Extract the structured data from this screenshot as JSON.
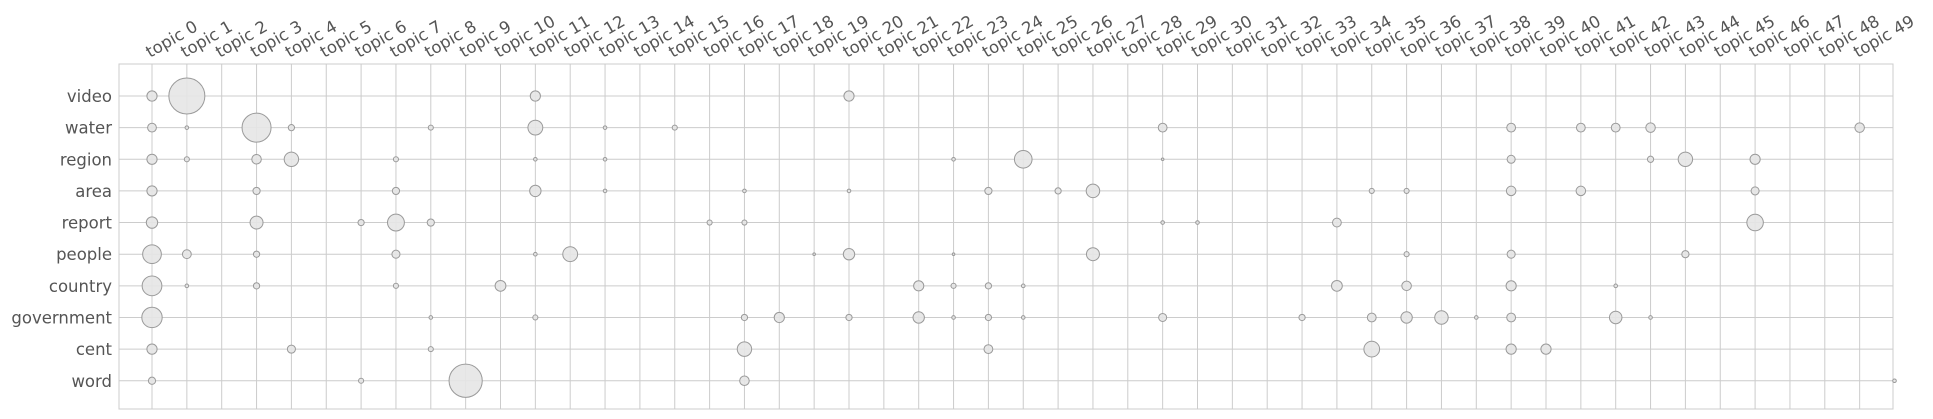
{
  "chart_data": {
    "type": "scatter",
    "title": "",
    "xlabel": "",
    "ylabel": "",
    "categories_x": [
      "topic 0",
      "topic 1",
      "topic 2",
      "topic 3",
      "topic 4",
      "topic 5",
      "topic 6",
      "topic 7",
      "topic 8",
      "topic 9",
      "topic 10",
      "topic 11",
      "topic 12",
      "topic 13",
      "topic 14",
      "topic 15",
      "topic 16",
      "topic 17",
      "topic 18",
      "topic 19",
      "topic 20",
      "topic 21",
      "topic 22",
      "topic 23",
      "topic 24",
      "topic 25",
      "topic 26",
      "topic 27",
      "topic 28",
      "topic 29",
      "topic 30",
      "topic 31",
      "topic 32",
      "topic 33",
      "topic 34",
      "topic 35",
      "topic 36",
      "topic 37",
      "topic 38",
      "topic 39",
      "topic 40",
      "topic 41",
      "topic 42",
      "topic 43",
      "topic 44",
      "topic 45",
      "topic 46",
      "topic 47",
      "topic 48",
      "topic 49"
    ],
    "categories_y": [
      "video",
      "water",
      "region",
      "area",
      "report",
      "people",
      "country",
      "government",
      "cent",
      "word"
    ],
    "x_tick_position": "top",
    "grid": true,
    "bubble_color": "#e6e6e6",
    "bubble_edge_color": "#9a9a9a",
    "grid_color": "#cccccc",
    "points": [
      {
        "word": "video",
        "topic": 0,
        "value": 0.08
      },
      {
        "word": "video",
        "topic": 1,
        "value": 1.0
      },
      {
        "word": "video",
        "topic": 11,
        "value": 0.08
      },
      {
        "word": "video",
        "topic": 20,
        "value": 0.08
      },
      {
        "word": "water",
        "topic": 0,
        "value": 0.06
      },
      {
        "word": "water",
        "topic": 1,
        "value": 0.01
      },
      {
        "word": "water",
        "topic": 3,
        "value": 0.65
      },
      {
        "word": "water",
        "topic": 4,
        "value": 0.03
      },
      {
        "word": "water",
        "topic": 8,
        "value": 0.02
      },
      {
        "word": "water",
        "topic": 11,
        "value": 0.17
      },
      {
        "word": "water",
        "topic": 13,
        "value": 0.01
      },
      {
        "word": "water",
        "topic": 15,
        "value": 0.02
      },
      {
        "word": "water",
        "topic": 29,
        "value": 0.06
      },
      {
        "word": "water",
        "topic": 39,
        "value": 0.06
      },
      {
        "word": "water",
        "topic": 41,
        "value": 0.06
      },
      {
        "word": "water",
        "topic": 42,
        "value": 0.06
      },
      {
        "word": "water",
        "topic": 43,
        "value": 0.07
      },
      {
        "word": "water",
        "topic": 49,
        "value": 0.07
      },
      {
        "word": "region",
        "topic": 0,
        "value": 0.08
      },
      {
        "word": "region",
        "topic": 1,
        "value": 0.02
      },
      {
        "word": "region",
        "topic": 3,
        "value": 0.07
      },
      {
        "word": "region",
        "topic": 4,
        "value": 0.16
      },
      {
        "word": "region",
        "topic": 7,
        "value": 0.02
      },
      {
        "word": "region",
        "topic": 11,
        "value": 0.01
      },
      {
        "word": "region",
        "topic": 13,
        "value": 0.01
      },
      {
        "word": "region",
        "topic": 23,
        "value": 0.01
      },
      {
        "word": "region",
        "topic": 25,
        "value": 0.24
      },
      {
        "word": "region",
        "topic": 29,
        "value": 0.005
      },
      {
        "word": "region",
        "topic": 39,
        "value": 0.05
      },
      {
        "word": "region",
        "topic": 43,
        "value": 0.03
      },
      {
        "word": "region",
        "topic": 44,
        "value": 0.16
      },
      {
        "word": "region",
        "topic": 46,
        "value": 0.08
      },
      {
        "word": "area",
        "topic": 0,
        "value": 0.08
      },
      {
        "word": "area",
        "topic": 3,
        "value": 0.04
      },
      {
        "word": "area",
        "topic": 7,
        "value": 0.04
      },
      {
        "word": "area",
        "topic": 11,
        "value": 0.1
      },
      {
        "word": "area",
        "topic": 13,
        "value": 0.01
      },
      {
        "word": "area",
        "topic": 17,
        "value": 0.01
      },
      {
        "word": "area",
        "topic": 20,
        "value": 0.01
      },
      {
        "word": "area",
        "topic": 24,
        "value": 0.04
      },
      {
        "word": "area",
        "topic": 26,
        "value": 0.03
      },
      {
        "word": "area",
        "topic": 27,
        "value": 0.14
      },
      {
        "word": "area",
        "topic": 35,
        "value": 0.02
      },
      {
        "word": "area",
        "topic": 36,
        "value": 0.02
      },
      {
        "word": "area",
        "topic": 39,
        "value": 0.07
      },
      {
        "word": "area",
        "topic": 41,
        "value": 0.07
      },
      {
        "word": "area",
        "topic": 46,
        "value": 0.05
      },
      {
        "word": "report",
        "topic": 0,
        "value": 0.1
      },
      {
        "word": "report",
        "topic": 3,
        "value": 0.13
      },
      {
        "word": "report",
        "topic": 6,
        "value": 0.03
      },
      {
        "word": "report",
        "topic": 7,
        "value": 0.22
      },
      {
        "word": "report",
        "topic": 8,
        "value": 0.04
      },
      {
        "word": "report",
        "topic": 16,
        "value": 0.02
      },
      {
        "word": "report",
        "topic": 17,
        "value": 0.02
      },
      {
        "word": "report",
        "topic": 29,
        "value": 0.01
      },
      {
        "word": "report",
        "topic": 30,
        "value": 0.01
      },
      {
        "word": "report",
        "topic": 34,
        "value": 0.06
      },
      {
        "word": "report",
        "topic": 46,
        "value": 0.21
      },
      {
        "word": "people",
        "topic": 0,
        "value": 0.27
      },
      {
        "word": "people",
        "topic": 1,
        "value": 0.06
      },
      {
        "word": "people",
        "topic": 3,
        "value": 0.03
      },
      {
        "word": "people",
        "topic": 7,
        "value": 0.05
      },
      {
        "word": "people",
        "topic": 11,
        "value": 0.01
      },
      {
        "word": "people",
        "topic": 12,
        "value": 0.17
      },
      {
        "word": "people",
        "topic": 19,
        "value": 0.005
      },
      {
        "word": "people",
        "topic": 20,
        "value": 0.1
      },
      {
        "word": "people",
        "topic": 23,
        "value": 0.005
      },
      {
        "word": "people",
        "topic": 27,
        "value": 0.13
      },
      {
        "word": "people",
        "topic": 36,
        "value": 0.02
      },
      {
        "word": "people",
        "topic": 39,
        "value": 0.05
      },
      {
        "word": "people",
        "topic": 44,
        "value": 0.04
      },
      {
        "word": "country",
        "topic": 0,
        "value": 0.3
      },
      {
        "word": "country",
        "topic": 1,
        "value": 0.01
      },
      {
        "word": "country",
        "topic": 3,
        "value": 0.03
      },
      {
        "word": "country",
        "topic": 7,
        "value": 0.02
      },
      {
        "word": "country",
        "topic": 10,
        "value": 0.09
      },
      {
        "word": "country",
        "topic": 22,
        "value": 0.08
      },
      {
        "word": "country",
        "topic": 23,
        "value": 0.02
      },
      {
        "word": "country",
        "topic": 24,
        "value": 0.03
      },
      {
        "word": "country",
        "topic": 25,
        "value": 0.01
      },
      {
        "word": "country",
        "topic": 34,
        "value": 0.09
      },
      {
        "word": "country",
        "topic": 36,
        "value": 0.07
      },
      {
        "word": "country",
        "topic": 39,
        "value": 0.08
      },
      {
        "word": "country",
        "topic": 42,
        "value": 0.01
      },
      {
        "word": "government",
        "topic": 0,
        "value": 0.32
      },
      {
        "word": "government",
        "topic": 8,
        "value": 0.01
      },
      {
        "word": "government",
        "topic": 11,
        "value": 0.02
      },
      {
        "word": "government",
        "topic": 17,
        "value": 0.03
      },
      {
        "word": "government",
        "topic": 18,
        "value": 0.08
      },
      {
        "word": "government",
        "topic": 20,
        "value": 0.03
      },
      {
        "word": "government",
        "topic": 22,
        "value": 0.1
      },
      {
        "word": "government",
        "topic": 23,
        "value": 0.01
      },
      {
        "word": "government",
        "topic": 24,
        "value": 0.03
      },
      {
        "word": "government",
        "topic": 25,
        "value": 0.01
      },
      {
        "word": "government",
        "topic": 29,
        "value": 0.05
      },
      {
        "word": "government",
        "topic": 33,
        "value": 0.03
      },
      {
        "word": "government",
        "topic": 35,
        "value": 0.06
      },
      {
        "word": "government",
        "topic": 36,
        "value": 0.1
      },
      {
        "word": "government",
        "topic": 37,
        "value": 0.14
      },
      {
        "word": "government",
        "topic": 38,
        "value": 0.01
      },
      {
        "word": "government",
        "topic": 39,
        "value": 0.06
      },
      {
        "word": "government",
        "topic": 42,
        "value": 0.12
      },
      {
        "word": "government",
        "topic": 43,
        "value": 0.01
      },
      {
        "word": "cent",
        "topic": 0,
        "value": 0.08
      },
      {
        "word": "cent",
        "topic": 4,
        "value": 0.05
      },
      {
        "word": "cent",
        "topic": 8,
        "value": 0.02
      },
      {
        "word": "cent",
        "topic": 17,
        "value": 0.16
      },
      {
        "word": "cent",
        "topic": 24,
        "value": 0.06
      },
      {
        "word": "cent",
        "topic": 35,
        "value": 0.19
      },
      {
        "word": "cent",
        "topic": 39,
        "value": 0.08
      },
      {
        "word": "cent",
        "topic": 40,
        "value": 0.08
      },
      {
        "word": "word",
        "topic": 0,
        "value": 0.04
      },
      {
        "word": "word",
        "topic": 6,
        "value": 0.02
      },
      {
        "word": "word",
        "topic": 9,
        "value": 0.85
      },
      {
        "word": "word",
        "topic": 17,
        "value": 0.07
      },
      {
        "word": "word",
        "topic": 50,
        "value": 0.01
      }
    ]
  }
}
